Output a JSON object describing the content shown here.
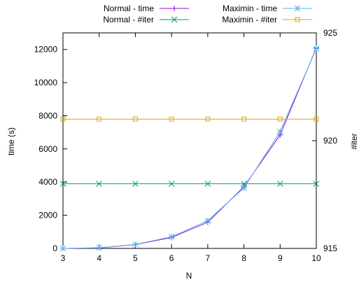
{
  "chart_data": {
    "type": "line",
    "xlabel": "N",
    "ylabel": "time (s)",
    "y2label": "#iter",
    "x": [
      3,
      4,
      5,
      6,
      7,
      8,
      9,
      10
    ],
    "xlim": [
      3,
      10
    ],
    "xticks": [
      3,
      4,
      5,
      6,
      7,
      8,
      9,
      10
    ],
    "ylim": [
      0,
      13000
    ],
    "yticks": [
      0,
      2000,
      4000,
      6000,
      8000,
      10000,
      12000
    ],
    "y2lim": [
      915,
      925
    ],
    "y2ticks": [
      915,
      920,
      925
    ],
    "legend_placement": "top, outside plot, two columns",
    "grid": false,
    "series": [
      {
        "name": "Normal - time",
        "axis": "left",
        "color": "#9400d3",
        "marker": "plus",
        "values": [
          0,
          30,
          230,
          660,
          1580,
          3720,
          6850,
          12100
        ]
      },
      {
        "name": "Normal - #iter",
        "axis": "right",
        "color": "#009e73",
        "marker": "cross",
        "values": [
          918,
          918,
          918,
          918,
          918,
          918,
          918,
          918
        ]
      },
      {
        "name": "Maximin - time",
        "axis": "left",
        "color": "#56b4e9",
        "marker": "star",
        "values": [
          0,
          40,
          240,
          700,
          1680,
          3650,
          7050,
          12050
        ]
      },
      {
        "name": "Maximin - #iter",
        "axis": "right",
        "color": "#e69f00",
        "marker": "square",
        "values": [
          921,
          921,
          921,
          921,
          921,
          921,
          921,
          921
        ]
      }
    ]
  }
}
